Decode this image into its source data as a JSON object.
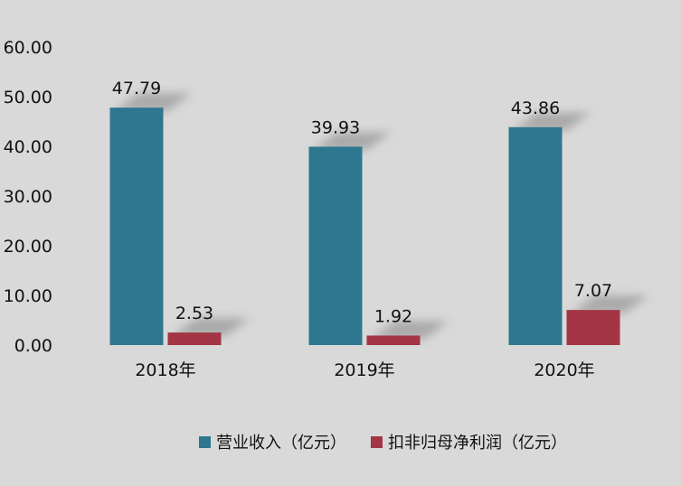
{
  "chart_data": {
    "type": "bar",
    "categories": [
      "2018年",
      "2019年",
      "2020年"
    ],
    "series": [
      {
        "name": "营业收入（亿元）",
        "values": [
          47.79,
          39.93,
          43.86
        ],
        "labels": [
          "47.79",
          "39.93",
          "43.86"
        ],
        "color": "#2e7790"
      },
      {
        "name": "扣非归母净利润（亿元）",
        "values": [
          2.53,
          1.92,
          7.07
        ],
        "labels": [
          "2.53",
          "1.92",
          "7.07"
        ],
        "color": "#a33545"
      }
    ],
    "yticks": [
      "0.00",
      "10.00",
      "20.00",
      "30.00",
      "40.00",
      "50.00",
      "60.00"
    ],
    "ylim": [
      0,
      60
    ],
    "grid": false,
    "legend": "bottom",
    "colors": {
      "background": "#d9d9d9",
      "text": "#111111",
      "shadow": "#9a9a9a"
    }
  }
}
